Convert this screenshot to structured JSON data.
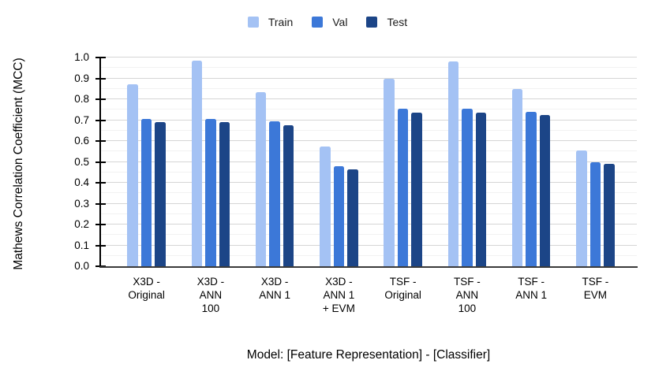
{
  "chart_data": {
    "type": "bar",
    "title": "",
    "categories": [
      "X3D - Original",
      "X3D - ANN 100",
      "X3D - ANN 1",
      "X3D - ANN 1 + EVM",
      "TSF - Original",
      "TSF - ANN 100",
      "TSF - ANN 1",
      "TSF - EVM"
    ],
    "series": [
      {
        "name": "Train",
        "color": "#a4c2f4",
        "values": [
          0.87,
          0.985,
          0.835,
          0.575,
          0.9,
          0.98,
          0.85,
          0.555
        ]
      },
      {
        "name": "Val",
        "color": "#3c78d8",
        "values": [
          0.705,
          0.705,
          0.695,
          0.48,
          0.755,
          0.755,
          0.74,
          0.5
        ]
      },
      {
        "name": "Test",
        "color": "#1c4587",
        "values": [
          0.69,
          0.69,
          0.675,
          0.465,
          0.735,
          0.735,
          0.725,
          0.49
        ]
      }
    ],
    "xlabel": "Model: [Feature Representation] - [Classifier]",
    "ylabel": "Mathews Correlation Coefficient (MCC)",
    "ylim": [
      0.0,
      1.0
    ],
    "y_major_step": 0.1,
    "y_minor_step": 0.05,
    "grid": true,
    "legend_position": "top"
  },
  "style": {
    "major_gridline_color": "#d6d6d6",
    "minor_gridline_color": "#f2f2f2",
    "axis_color": "#000000",
    "baseline_color": "#3a3a3a",
    "text_color": "#000000"
  }
}
